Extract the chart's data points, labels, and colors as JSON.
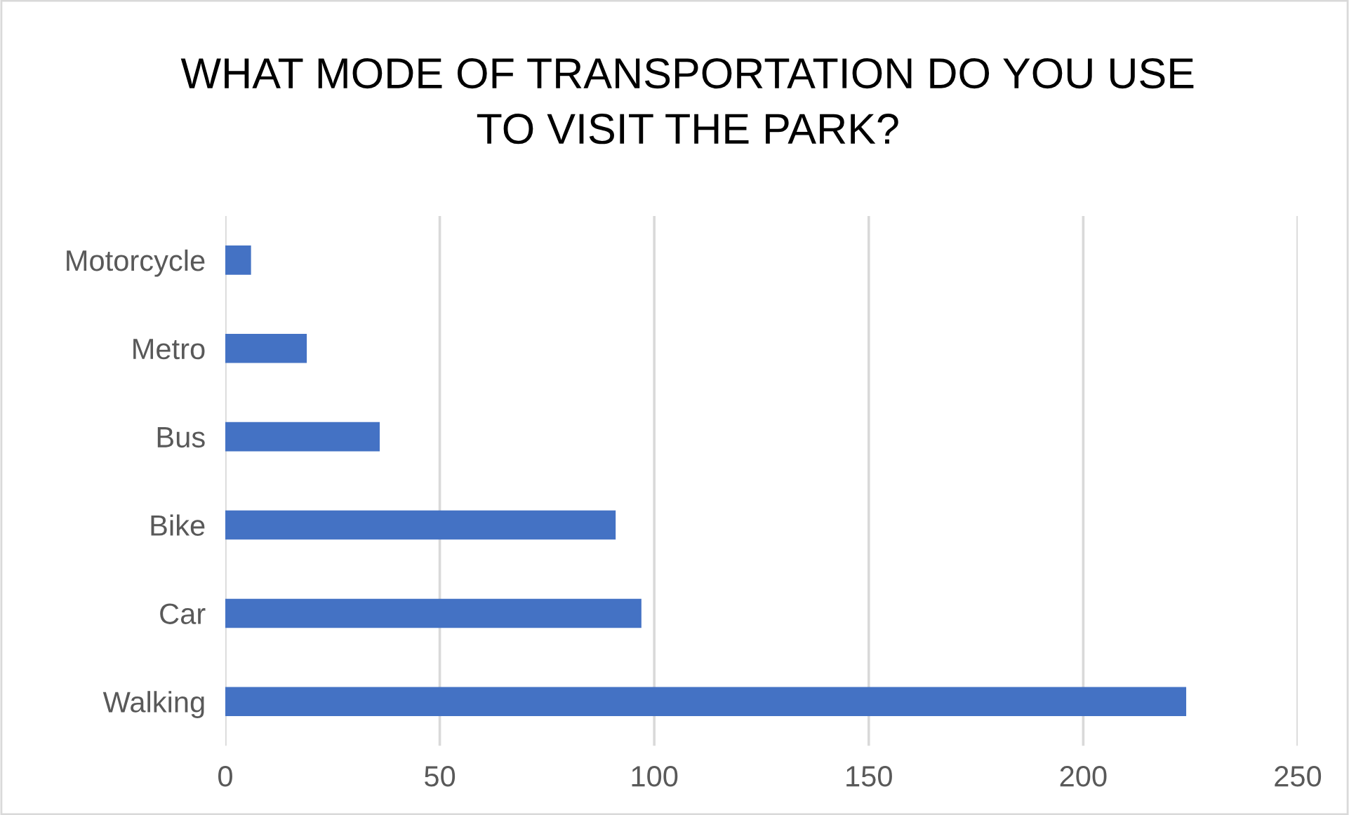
{
  "chart_data": {
    "type": "bar",
    "orientation": "horizontal",
    "title": "WHAT MODE OF TRANSPORTATION DO YOU USE\nTO VISIT THE PARK?",
    "categories": [
      "Motorcycle",
      "Metro",
      "Bus",
      "Bike",
      "Car",
      "Walking"
    ],
    "values": [
      6,
      19,
      36,
      91,
      97,
      224
    ],
    "color": "#4472c4",
    "xlim": [
      0,
      250
    ],
    "xticks": [
      0,
      50,
      100,
      150,
      200,
      250
    ],
    "grid": "x",
    "legend": false
  }
}
